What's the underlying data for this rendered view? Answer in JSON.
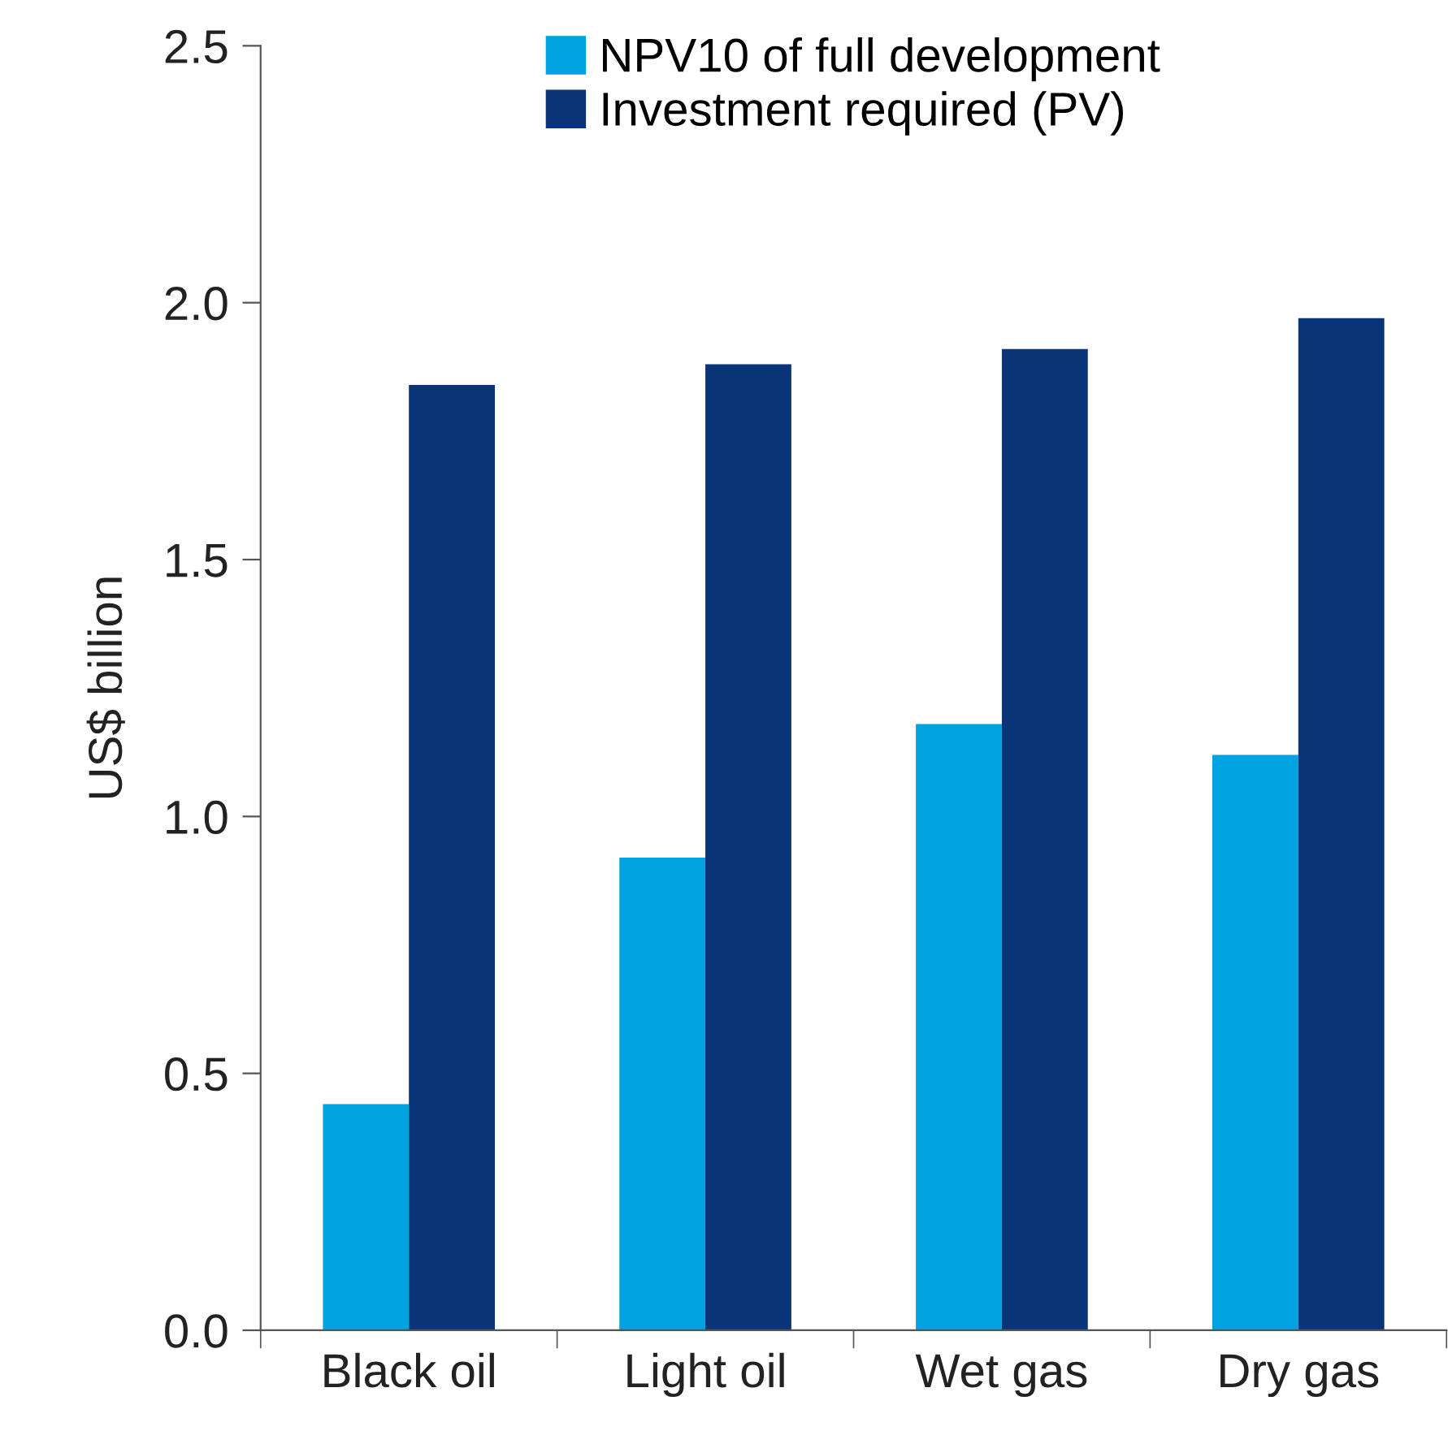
{
  "chart_data": {
    "type": "bar",
    "ylabel": "US$ billion",
    "categories": [
      "Black oil",
      "Light oil",
      "Wet gas",
      "Dry gas"
    ],
    "series": [
      {
        "name": "NPV10 of full development",
        "color": "#00a3e0",
        "values": [
          0.44,
          0.92,
          1.18,
          1.12
        ]
      },
      {
        "name": "Investment required (PV)",
        "color": "#0a3478",
        "values": [
          1.84,
          1.88,
          1.91,
          1.97
        ]
      }
    ],
    "ylim": [
      0,
      2.5
    ],
    "yticks": [
      {
        "value": 0,
        "label": "0.0"
      },
      {
        "value": 0.5,
        "label": "0.5"
      },
      {
        "value": 1,
        "label": "1.0"
      },
      {
        "value": 1.5,
        "label": "1.5"
      },
      {
        "value": 2,
        "label": "2.0"
      },
      {
        "value": 2.5,
        "label": "2.5"
      }
    ],
    "grid": false,
    "legend": "top"
  }
}
